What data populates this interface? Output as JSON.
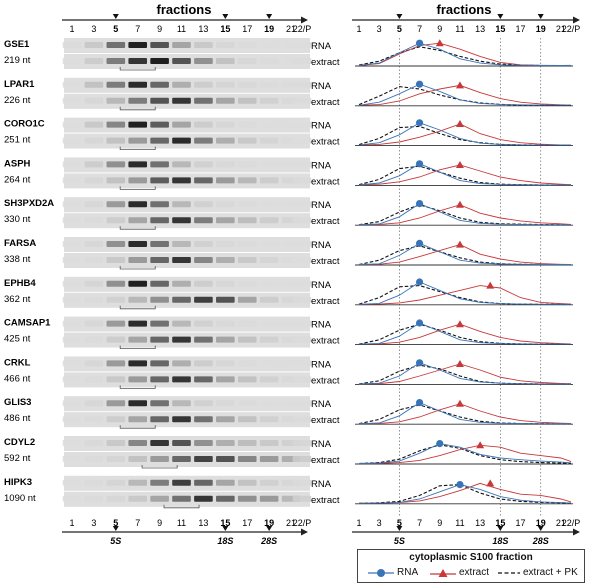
{
  "left_panel": {
    "title": "fractions",
    "fraction_labels": [
      "1",
      "3",
      "5",
      "7",
      "9",
      "11",
      "13",
      "15",
      "17",
      "19",
      "21",
      "22/P"
    ],
    "bold_labels": [
      "5",
      "15",
      "19"
    ],
    "marker_labels": [
      "5S",
      "18S",
      "28S"
    ],
    "row_labels": [
      "RNA",
      "extract"
    ]
  },
  "right_panel": {
    "title": "fractions",
    "fraction_labels": [
      "1",
      "3",
      "5",
      "7",
      "9",
      "11",
      "13",
      "15",
      "17",
      "19",
      "21",
      "22/P"
    ],
    "bold_labels": [
      "5",
      "15",
      "19"
    ],
    "marker_labels": [
      "5S",
      "18S",
      "28S"
    ]
  },
  "genes": [
    {
      "name": "GSE1",
      "size": "219 nt"
    },
    {
      "name": "LPAR1",
      "size": "226 nt"
    },
    {
      "name": "CORO1C",
      "size": "251 nt"
    },
    {
      "name": "ASPH",
      "size": "264 nt"
    },
    {
      "name": "SH3PXD2A",
      "size": "330 nt"
    },
    {
      "name": "FARSA",
      "size": "338 nt"
    },
    {
      "name": "EPHB4",
      "size": "362 nt"
    },
    {
      "name": "CAMSAP1",
      "size": "425 nt"
    },
    {
      "name": "CRKL",
      "size": "466 nt"
    },
    {
      "name": "GLIS3",
      "size": "486 nt"
    },
    {
      "name": "CDYL2",
      "size": "592 nt"
    },
    {
      "name": "HIPK3",
      "size": "1090 nt"
    }
  ],
  "legend": {
    "title": "cytoplasmic S100 fraction",
    "items": [
      "RNA",
      "extract",
      "extract + PK"
    ]
  },
  "colors": {
    "rna": "#3a74b8",
    "extract": "#c8383a",
    "pk": "#111111"
  },
  "chart_data": {
    "type": "line",
    "x": [
      1,
      3,
      5,
      7,
      9,
      11,
      13,
      15,
      17,
      19,
      21,
      22
    ],
    "x_tick_labels": [
      "1",
      "3",
      "5",
      "7",
      "9",
      "11",
      "13",
      "15",
      "17",
      "19",
      "21",
      "22/P"
    ],
    "reference_lines": [
      5,
      15,
      19
    ],
    "panels": [
      {
        "gene": "GSE1",
        "series": [
          {
            "name": "RNA",
            "peak": 7,
            "values": [
              0.03,
              0.12,
              0.55,
              0.95,
              0.7,
              0.3,
              0.12,
              0.05,
              0.03,
              0.02,
              0.02,
              0.02
            ]
          },
          {
            "name": "extract",
            "peak": 9,
            "values": [
              0.02,
              0.1,
              0.5,
              0.85,
              0.95,
              0.7,
              0.4,
              0.15,
              0.05,
              0.03,
              0.02,
              0.03
            ]
          },
          {
            "name": "extract + PK",
            "values": [
              0.04,
              0.2,
              0.55,
              0.8,
              0.65,
              0.4,
              0.2,
              0.08,
              0.04,
              0.02,
              0.02,
              0.02
            ]
          }
        ]
      },
      {
        "gene": "LPAR1",
        "series": [
          {
            "name": "RNA",
            "peak": 7,
            "values": [
              0.02,
              0.15,
              0.5,
              0.9,
              0.6,
              0.25,
              0.1,
              0.06,
              0.04,
              0.03,
              0.03,
              0.03
            ]
          },
          {
            "name": "extract",
            "peak": 11,
            "values": [
              0.02,
              0.05,
              0.2,
              0.5,
              0.7,
              0.85,
              0.55,
              0.3,
              0.15,
              0.08,
              0.04,
              0.03
            ]
          },
          {
            "name": "extract + PK",
            "values": [
              0.05,
              0.4,
              0.8,
              0.7,
              0.45,
              0.25,
              0.12,
              0.06,
              0.03,
              0.02,
              0.02,
              0.02
            ]
          }
        ]
      },
      {
        "gene": "CORO1C",
        "series": [
          {
            "name": "RNA",
            "peak": 7,
            "values": [
              0.02,
              0.12,
              0.45,
              0.95,
              0.65,
              0.3,
              0.1,
              0.05,
              0.03,
              0.02,
              0.02,
              0.02
            ]
          },
          {
            "name": "extract",
            "peak": 11,
            "values": [
              0.02,
              0.05,
              0.15,
              0.35,
              0.6,
              0.9,
              0.5,
              0.25,
              0.12,
              0.06,
              0.03,
              0.02
            ]
          },
          {
            "name": "extract + PK",
            "values": [
              0.04,
              0.3,
              0.75,
              0.8,
              0.5,
              0.25,
              0.12,
              0.05,
              0.03,
              0.02,
              0.02,
              0.02
            ]
          }
        ]
      },
      {
        "gene": "ASPH",
        "series": [
          {
            "name": "RNA",
            "peak": 7,
            "values": [
              0.02,
              0.1,
              0.4,
              0.9,
              0.55,
              0.2,
              0.08,
              0.04,
              0.03,
              0.02,
              0.02,
              0.02
            ]
          },
          {
            "name": "extract",
            "peak": 11,
            "values": [
              0.02,
              0.05,
              0.15,
              0.35,
              0.65,
              0.85,
              0.6,
              0.35,
              0.2,
              0.1,
              0.05,
              0.03
            ]
          },
          {
            "name": "extract + PK",
            "values": [
              0.03,
              0.25,
              0.7,
              0.8,
              0.55,
              0.3,
              0.12,
              0.05,
              0.03,
              0.02,
              0.02,
              0.02
            ]
          }
        ]
      },
      {
        "gene": "SH3PXD2A",
        "series": [
          {
            "name": "RNA",
            "peak": 7,
            "values": [
              0.02,
              0.05,
              0.35,
              0.9,
              0.55,
              0.2,
              0.08,
              0.04,
              0.03,
              0.02,
              0.02,
              0.02
            ]
          },
          {
            "name": "extract",
            "peak": 11,
            "values": [
              0.02,
              0.03,
              0.1,
              0.3,
              0.6,
              0.85,
              0.5,
              0.3,
              0.18,
              0.1,
              0.06,
              0.03
            ]
          },
          {
            "name": "extract + PK",
            "values": [
              0.02,
              0.15,
              0.55,
              0.85,
              0.6,
              0.3,
              0.12,
              0.06,
              0.04,
              0.03,
              0.02,
              0.02
            ]
          }
        ]
      },
      {
        "gene": "FARSA",
        "series": [
          {
            "name": "RNA",
            "peak": 7,
            "values": [
              0.02,
              0.05,
              0.4,
              0.9,
              0.55,
              0.2,
              0.08,
              0.04,
              0.03,
              0.02,
              0.02,
              0.02
            ]
          },
          {
            "name": "extract",
            "peak": 11,
            "values": [
              0.02,
              0.03,
              0.12,
              0.35,
              0.6,
              0.85,
              0.45,
              0.25,
              0.12,
              0.06,
              0.03,
              0.02
            ]
          },
          {
            "name": "extract + PK",
            "values": [
              0.02,
              0.2,
              0.6,
              0.8,
              0.55,
              0.3,
              0.12,
              0.05,
              0.03,
              0.02,
              0.02,
              0.02
            ]
          }
        ]
      },
      {
        "gene": "EPHB4",
        "series": [
          {
            "name": "RNA",
            "peak": 7,
            "values": [
              0.02,
              0.06,
              0.4,
              0.95,
              0.6,
              0.25,
              0.1,
              0.05,
              0.03,
              0.02,
              0.02,
              0.02
            ]
          },
          {
            "name": "extract",
            "peak": 14,
            "values": [
              0.02,
              0.03,
              0.08,
              0.2,
              0.4,
              0.6,
              0.8,
              0.7,
              0.3,
              0.1,
              0.05,
              0.03
            ]
          },
          {
            "name": "extract + PK",
            "values": [
              0.03,
              0.3,
              0.75,
              0.8,
              0.55,
              0.3,
              0.12,
              0.05,
              0.03,
              0.02,
              0.02,
              0.02
            ]
          }
        ]
      },
      {
        "gene": "CAMSAP1",
        "series": [
          {
            "name": "RNA",
            "peak": 7,
            "values": [
              0.02,
              0.05,
              0.35,
              0.9,
              0.55,
              0.2,
              0.08,
              0.04,
              0.03,
              0.02,
              0.02,
              0.02
            ]
          },
          {
            "name": "extract",
            "peak": 11,
            "values": [
              0.02,
              0.03,
              0.1,
              0.3,
              0.6,
              0.85,
              0.55,
              0.3,
              0.15,
              0.08,
              0.04,
              0.03
            ]
          },
          {
            "name": "extract + PK",
            "values": [
              0.02,
              0.2,
              0.6,
              0.85,
              0.6,
              0.3,
              0.12,
              0.05,
              0.03,
              0.02,
              0.02,
              0.02
            ]
          }
        ]
      },
      {
        "gene": "CRKL",
        "series": [
          {
            "name": "RNA",
            "peak": 7,
            "values": [
              0.02,
              0.05,
              0.35,
              0.9,
              0.6,
              0.25,
              0.1,
              0.05,
              0.03,
              0.02,
              0.02,
              0.02
            ]
          },
          {
            "name": "extract",
            "peak": 11,
            "values": [
              0.02,
              0.03,
              0.12,
              0.35,
              0.6,
              0.85,
              0.6,
              0.3,
              0.15,
              0.08,
              0.04,
              0.03
            ]
          },
          {
            "name": "extract + PK",
            "values": [
              0.02,
              0.15,
              0.55,
              0.8,
              0.65,
              0.35,
              0.12,
              0.05,
              0.03,
              0.02,
              0.02,
              0.02
            ]
          }
        ]
      },
      {
        "gene": "GLIS3",
        "series": [
          {
            "name": "RNA",
            "peak": 7,
            "values": [
              0.02,
              0.05,
              0.35,
              0.9,
              0.55,
              0.2,
              0.08,
              0.04,
              0.03,
              0.02,
              0.02,
              0.02
            ]
          },
          {
            "name": "extract",
            "peak": 11,
            "values": [
              0.02,
              0.03,
              0.1,
              0.3,
              0.6,
              0.85,
              0.55,
              0.3,
              0.15,
              0.08,
              0.04,
              0.03
            ]
          },
          {
            "name": "extract + PK",
            "values": [
              0.02,
              0.2,
              0.6,
              0.8,
              0.55,
              0.3,
              0.12,
              0.05,
              0.03,
              0.02,
              0.02,
              0.02
            ]
          }
        ]
      },
      {
        "gene": "CDYL2",
        "series": [
          {
            "name": "RNA",
            "peak": 9,
            "values": [
              0.02,
              0.04,
              0.12,
              0.45,
              0.85,
              0.7,
              0.4,
              0.25,
              0.18,
              0.12,
              0.08,
              0.05
            ]
          },
          {
            "name": "extract",
            "peak": 13,
            "values": [
              0.02,
              0.03,
              0.06,
              0.15,
              0.35,
              0.6,
              0.78,
              0.7,
              0.45,
              0.35,
              0.25,
              0.1
            ]
          },
          {
            "name": "extract + PK",
            "values": [
              0.02,
              0.06,
              0.2,
              0.55,
              0.8,
              0.65,
              0.35,
              0.18,
              0.1,
              0.06,
              0.04,
              0.03
            ]
          }
        ]
      },
      {
        "gene": "HIPK3",
        "series": [
          {
            "name": "RNA",
            "peak": 11,
            "values": [
              0.02,
              0.03,
              0.06,
              0.2,
              0.5,
              0.8,
              0.6,
              0.3,
              0.15,
              0.08,
              0.05,
              0.03
            ]
          },
          {
            "name": "extract",
            "peak": 14,
            "values": [
              0.02,
              0.03,
              0.05,
              0.12,
              0.3,
              0.55,
              0.85,
              0.6,
              0.4,
              0.35,
              0.2,
              0.08
            ]
          },
          {
            "name": "extract + PK",
            "values": [
              0.02,
              0.04,
              0.1,
              0.35,
              0.75,
              0.8,
              0.45,
              0.2,
              0.1,
              0.06,
              0.04,
              0.03
            ]
          }
        ]
      }
    ]
  }
}
